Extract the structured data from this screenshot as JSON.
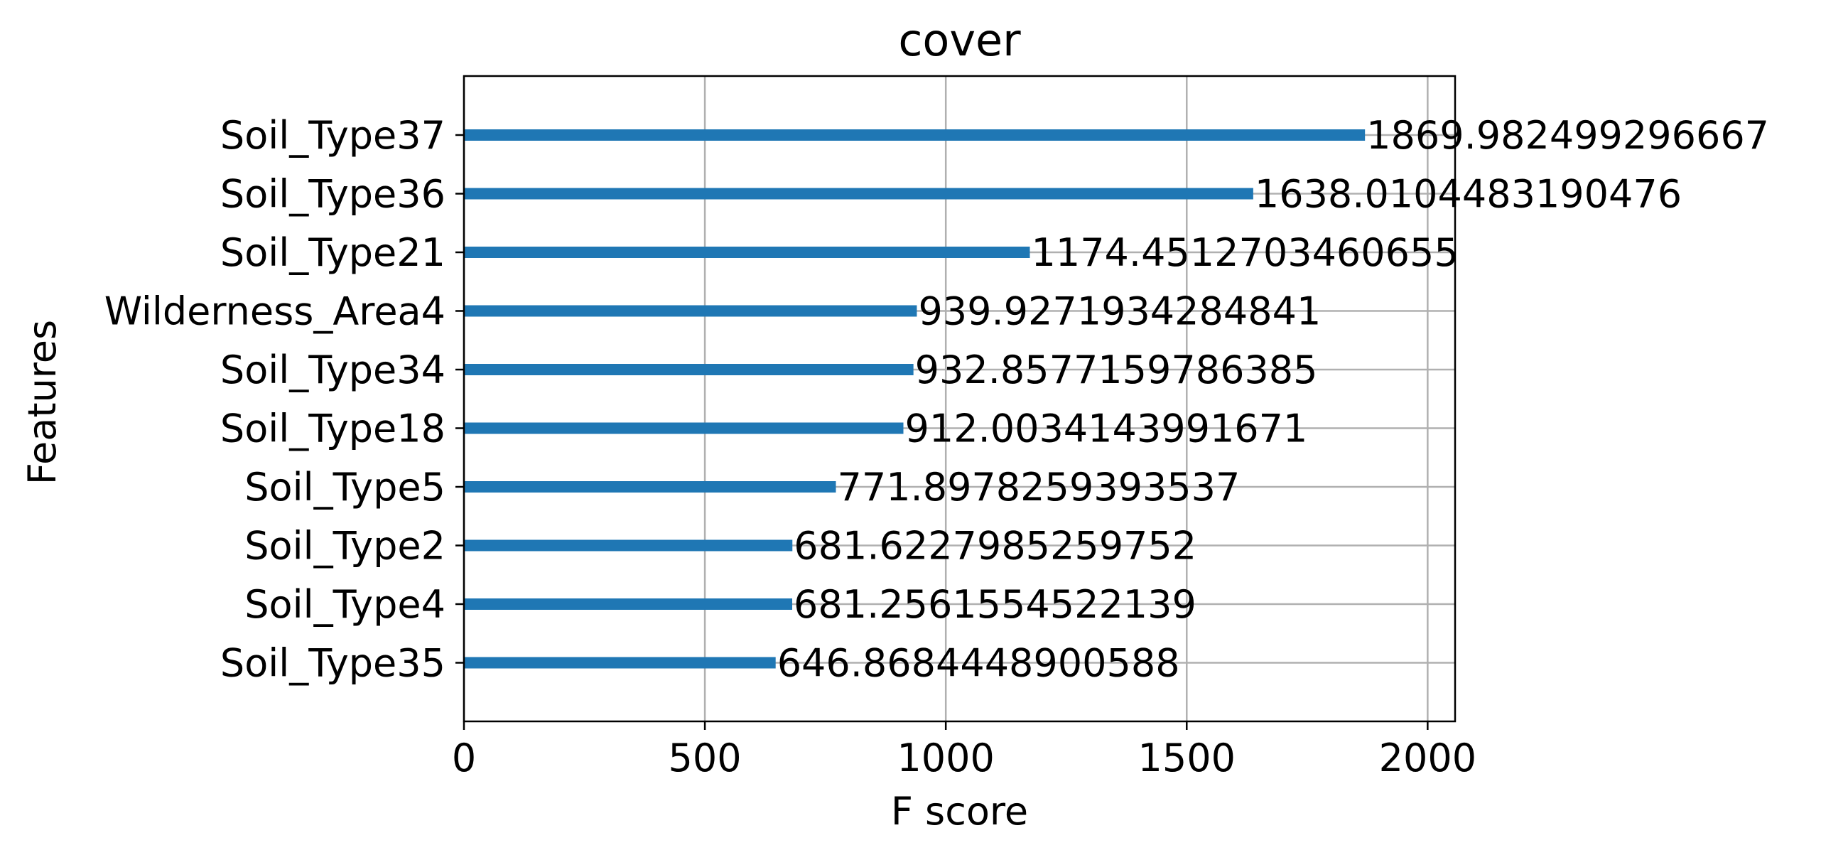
{
  "chart_data": {
    "type": "bar",
    "orientation": "horizontal",
    "title": "cover",
    "xlabel": "F score",
    "ylabel": "Features",
    "categories": [
      "Soil_Type37",
      "Soil_Type36",
      "Soil_Type21",
      "Wilderness_Area4",
      "Soil_Type34",
      "Soil_Type18",
      "Soil_Type5",
      "Soil_Type2",
      "Soil_Type4",
      "Soil_Type35"
    ],
    "values": [
      1869.982499296667,
      1638.0104483190476,
      1174.4512703460655,
      939.9271934284841,
      932.8577159786385,
      912.0034143991671,
      771.8978259393537,
      681.6227985259752,
      681.2561554522139,
      646.8684448900588
    ],
    "value_labels": [
      "1869.982499296667",
      "1638.0104483190476",
      "1174.4512703460655",
      "939.9271934284841",
      "932.8577159786385",
      "912.0034143991671",
      "771.8978259393537",
      "681.6227985259752",
      "681.2561554522139",
      "646.8684448900588"
    ],
    "xlim": [
      0,
      2056.98
    ],
    "xticks": [
      0,
      500,
      1000,
      1500,
      2000
    ],
    "xtick_labels": [
      "0",
      "500",
      "1000",
      "1500",
      "2000"
    ],
    "grid": true,
    "bar_color": "#1f77b4"
  }
}
